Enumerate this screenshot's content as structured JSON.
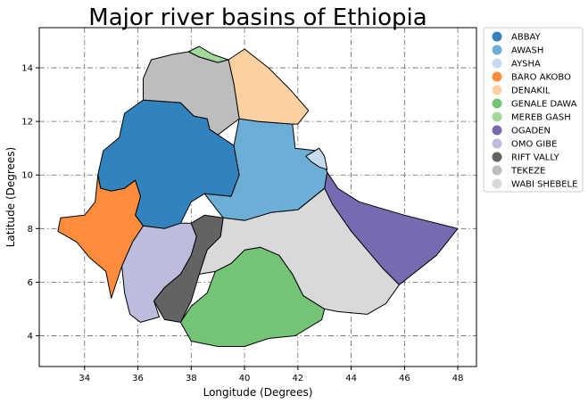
{
  "chart_data": {
    "type": "choropleth-map",
    "title": "Major river basins of Ethiopia",
    "xlabel": "Longitude (Degrees)",
    "ylabel": "Latitude (Degrees)",
    "xlim": [
      32.3,
      48.7
    ],
    "ylim": [
      2.85,
      15.5
    ],
    "xticks": [
      34,
      36,
      38,
      40,
      42,
      44,
      46,
      48
    ],
    "yticks": [
      4,
      6,
      8,
      10,
      12,
      14
    ],
    "grid": true,
    "legend_position": "outside-right",
    "basins": [
      {
        "name": "ABBAY",
        "color": "#3182bd",
        "outline": [
          [
            36.2,
            12.8
          ],
          [
            37.6,
            12.7
          ],
          [
            38.1,
            12.2
          ],
          [
            38.6,
            12.1
          ],
          [
            38.7,
            11.7
          ],
          [
            39.0,
            11.5
          ],
          [
            39.6,
            11.1
          ],
          [
            39.8,
            10.0
          ],
          [
            39.5,
            9.2
          ],
          [
            38.5,
            9.3
          ],
          [
            38.0,
            9.0
          ],
          [
            37.6,
            8.2
          ],
          [
            37.0,
            8.0
          ],
          [
            36.2,
            8.1
          ],
          [
            35.9,
            8.5
          ],
          [
            36.1,
            9.2
          ],
          [
            35.9,
            9.8
          ],
          [
            35.5,
            9.5
          ],
          [
            35.0,
            9.4
          ],
          [
            34.6,
            9.5
          ],
          [
            34.5,
            10.0
          ],
          [
            34.7,
            10.9
          ],
          [
            35.3,
            11.4
          ],
          [
            35.5,
            12.3
          ]
        ]
      },
      {
        "name": "AWASH",
        "color": "#6baed6",
        "outline": [
          [
            39.6,
            11.1
          ],
          [
            39.8,
            12.1
          ],
          [
            40.5,
            12.0
          ],
          [
            41.8,
            11.9
          ],
          [
            41.9,
            11.0
          ],
          [
            42.8,
            10.9
          ],
          [
            43.1,
            10.1
          ],
          [
            43.0,
            9.5
          ],
          [
            42.0,
            8.7
          ],
          [
            41.0,
            8.6
          ],
          [
            40.0,
            8.3
          ],
          [
            39.2,
            8.4
          ],
          [
            38.5,
            9.3
          ],
          [
            39.5,
            9.2
          ],
          [
            39.8,
            10.0
          ]
        ]
      },
      {
        "name": "AYSHA",
        "color": "#c6dbef",
        "outline": [
          [
            42.3,
            10.7
          ],
          [
            42.8,
            11.0
          ],
          [
            43.0,
            10.7
          ],
          [
            43.1,
            10.2
          ],
          [
            42.8,
            10.3
          ],
          [
            42.5,
            10.5
          ]
        ]
      },
      {
        "name": "BARO AKOBO",
        "color": "#fd8d3c",
        "outline": [
          [
            34.5,
            10.0
          ],
          [
            34.6,
            9.5
          ],
          [
            35.0,
            9.4
          ],
          [
            35.5,
            9.5
          ],
          [
            35.9,
            9.8
          ],
          [
            36.1,
            9.2
          ],
          [
            35.9,
            8.5
          ],
          [
            36.2,
            8.1
          ],
          [
            35.8,
            7.5
          ],
          [
            35.4,
            6.6
          ],
          [
            35.2,
            6.0
          ],
          [
            35.0,
            5.4
          ],
          [
            34.8,
            6.4
          ],
          [
            34.2,
            6.9
          ],
          [
            33.7,
            7.5
          ],
          [
            33.0,
            7.9
          ],
          [
            33.1,
            8.4
          ],
          [
            34.0,
            8.5
          ],
          [
            34.4,
            9.0
          ]
        ]
      },
      {
        "name": "DENAKIL",
        "color": "#fdd0a2",
        "outline": [
          [
            39.8,
            12.1
          ],
          [
            39.6,
            13.4
          ],
          [
            39.4,
            14.3
          ],
          [
            40.0,
            14.7
          ],
          [
            40.9,
            14.0
          ],
          [
            41.7,
            13.2
          ],
          [
            42.4,
            12.4
          ],
          [
            42.0,
            11.9
          ],
          [
            41.8,
            11.9
          ],
          [
            40.5,
            12.0
          ]
        ]
      },
      {
        "name": "GENALE DAWA",
        "color": "#74c476",
        "outline": [
          [
            37.6,
            4.5
          ],
          [
            38.0,
            5.1
          ],
          [
            38.6,
            5.6
          ],
          [
            38.9,
            6.4
          ],
          [
            39.5,
            6.7
          ],
          [
            40.0,
            7.2
          ],
          [
            40.6,
            7.3
          ],
          [
            41.3,
            7.0
          ],
          [
            41.8,
            6.3
          ],
          [
            42.2,
            5.5
          ],
          [
            43.0,
            5.0
          ],
          [
            42.9,
            4.6
          ],
          [
            41.9,
            4.0
          ],
          [
            40.9,
            3.9
          ],
          [
            40.0,
            3.6
          ],
          [
            39.0,
            3.6
          ],
          [
            38.0,
            3.8
          ]
        ]
      },
      {
        "name": "MEREB GASH",
        "color": "#a1d99b",
        "outline": [
          [
            37.9,
            14.6
          ],
          [
            38.3,
            14.8
          ],
          [
            38.8,
            14.5
          ],
          [
            39.4,
            14.3
          ],
          [
            39.0,
            14.2
          ],
          [
            38.3,
            14.4
          ]
        ]
      },
      {
        "name": "OGADEN",
        "color": "#756bb1",
        "outline": [
          [
            43.1,
            10.1
          ],
          [
            43.5,
            9.5
          ],
          [
            44.3,
            9.0
          ],
          [
            46.0,
            8.5
          ],
          [
            48.0,
            8.0
          ],
          [
            47.2,
            7.0
          ],
          [
            45.8,
            5.9
          ],
          [
            45.2,
            6.5
          ],
          [
            44.0,
            7.9
          ],
          [
            43.3,
            8.9
          ],
          [
            43.0,
            9.5
          ]
        ]
      },
      {
        "name": "OMO GIBE",
        "color": "#bcbddc",
        "outline": [
          [
            37.0,
            8.0
          ],
          [
            37.6,
            8.2
          ],
          [
            38.0,
            8.2
          ],
          [
            38.2,
            7.7
          ],
          [
            38.0,
            7.0
          ],
          [
            37.6,
            6.3
          ],
          [
            37.0,
            5.8
          ],
          [
            36.6,
            5.3
          ],
          [
            36.8,
            4.7
          ],
          [
            36.1,
            4.5
          ],
          [
            35.7,
            4.8
          ],
          [
            35.5,
            5.6
          ],
          [
            35.4,
            6.6
          ],
          [
            35.8,
            7.5
          ],
          [
            36.2,
            8.1
          ]
        ]
      },
      {
        "name": "RIFT VALLY",
        "color": "#636363",
        "outline": [
          [
            38.0,
            8.2
          ],
          [
            38.5,
            8.5
          ],
          [
            39.2,
            8.4
          ],
          [
            39.1,
            7.7
          ],
          [
            38.6,
            7.2
          ],
          [
            38.3,
            6.3
          ],
          [
            38.0,
            5.3
          ],
          [
            37.6,
            4.5
          ],
          [
            37.0,
            4.6
          ],
          [
            36.6,
            5.3
          ],
          [
            37.0,
            5.8
          ],
          [
            37.6,
            6.3
          ],
          [
            38.0,
            7.0
          ],
          [
            38.2,
            7.7
          ]
        ]
      },
      {
        "name": "TEKEZE",
        "color": "#bdbdbd",
        "outline": [
          [
            36.2,
            12.8
          ],
          [
            36.2,
            13.6
          ],
          [
            36.5,
            14.3
          ],
          [
            37.3,
            14.5
          ],
          [
            37.9,
            14.6
          ],
          [
            38.3,
            14.4
          ],
          [
            39.0,
            14.2
          ],
          [
            39.4,
            14.3
          ],
          [
            39.6,
            13.4
          ],
          [
            39.8,
            12.1
          ],
          [
            39.0,
            11.5
          ],
          [
            38.7,
            11.7
          ],
          [
            38.6,
            12.1
          ],
          [
            38.1,
            12.2
          ],
          [
            37.6,
            12.7
          ]
        ]
      },
      {
        "name": "WABI SHEBELE",
        "color": "#d9d9d9",
        "outline": [
          [
            39.2,
            8.4
          ],
          [
            40.0,
            8.3
          ],
          [
            41.0,
            8.6
          ],
          [
            42.0,
            8.7
          ],
          [
            43.0,
            9.5
          ],
          [
            43.3,
            8.9
          ],
          [
            44.0,
            7.9
          ],
          [
            45.2,
            6.5
          ],
          [
            45.8,
            5.9
          ],
          [
            45.3,
            5.2
          ],
          [
            44.6,
            4.8
          ],
          [
            43.5,
            4.9
          ],
          [
            43.0,
            5.0
          ],
          [
            42.2,
            5.5
          ],
          [
            41.8,
            6.3
          ],
          [
            41.3,
            7.0
          ],
          [
            40.6,
            7.3
          ],
          [
            40.0,
            7.2
          ],
          [
            39.5,
            6.7
          ],
          [
            38.9,
            6.4
          ],
          [
            38.3,
            6.3
          ],
          [
            38.6,
            7.2
          ],
          [
            39.1,
            7.7
          ]
        ]
      }
    ]
  }
}
